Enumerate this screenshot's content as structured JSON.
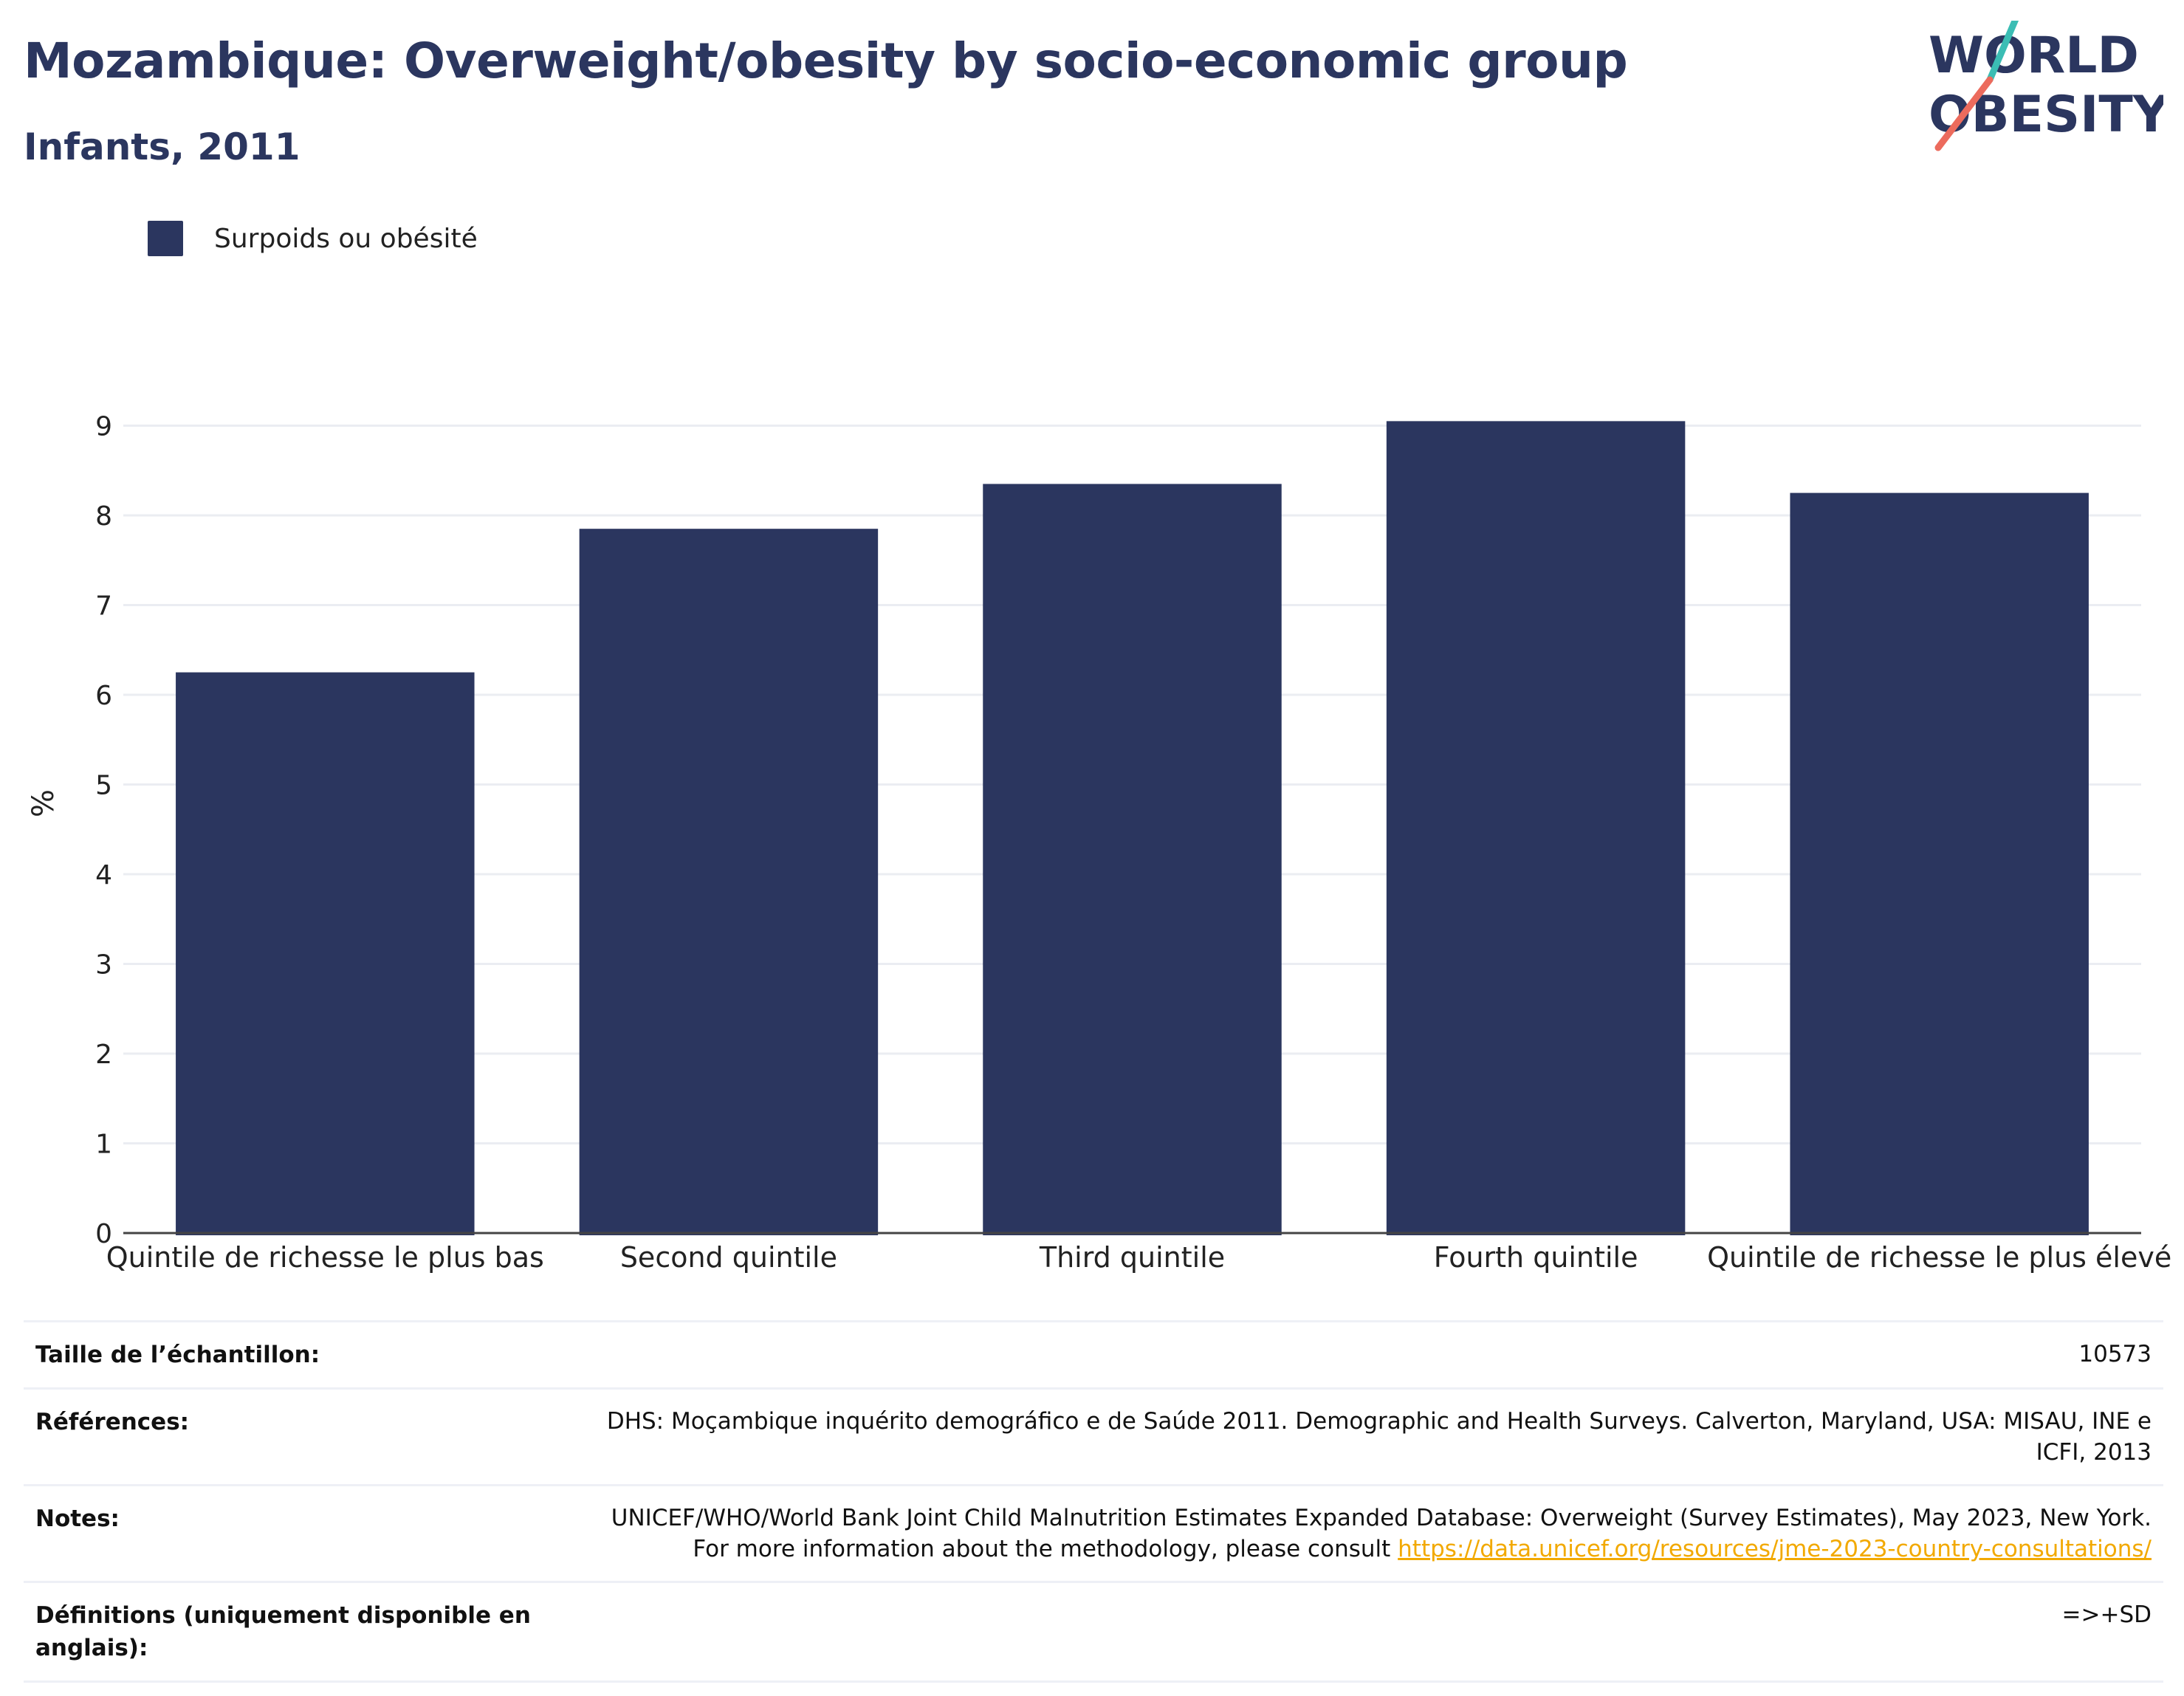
{
  "header": {
    "title": "Mozambique: Overweight/obesity by socio-economic group",
    "subtitle": "Infants, 2011"
  },
  "logo": {
    "line1": "WORLD",
    "line2": "OBESITY"
  },
  "legend": {
    "label": "Surpoids ou obésité",
    "color": "#2b365f"
  },
  "chart_data": {
    "type": "bar",
    "categories": [
      "Quintile de richesse le plus bas",
      "Second quintile",
      "Third quintile",
      "Fourth quintile",
      "Quintile de richesse le plus élevé"
    ],
    "series": [
      {
        "name": "Surpoids ou obésité",
        "values": [
          6.25,
          7.85,
          8.35,
          9.05,
          8.25
        ],
        "color": "#2b365f"
      }
    ],
    "ylabel": "%",
    "ylim": [
      0,
      9.3
    ],
    "yticks": [
      0,
      1,
      2,
      3,
      4,
      5,
      6,
      7,
      8,
      9
    ],
    "grid": true
  },
  "info": {
    "sample_size_label": "Taille de l’échantillon:",
    "sample_size_value": "10573",
    "references_label": "Références:",
    "references_value": "DHS: Moçambique inquérito demográfico e de Saúde 2011. Demographic and Health Surveys. Calverton, Maryland, USA: MISAU, INE e ICFI, 2013",
    "notes_label": "Notes:",
    "notes_value": "UNICEF/WHO/World Bank Joint Child Malnutrition Estimates Expanded Database: Overweight (Survey Estimates), May 2023, New York. For more information about the methodology, please consult",
    "notes_link": "https://data.unicef.org/resources/jme-2023-country-consultations/",
    "definitions_label": "Définitions (uniquement disponible en anglais):",
    "definitions_value": "=>+SD"
  }
}
